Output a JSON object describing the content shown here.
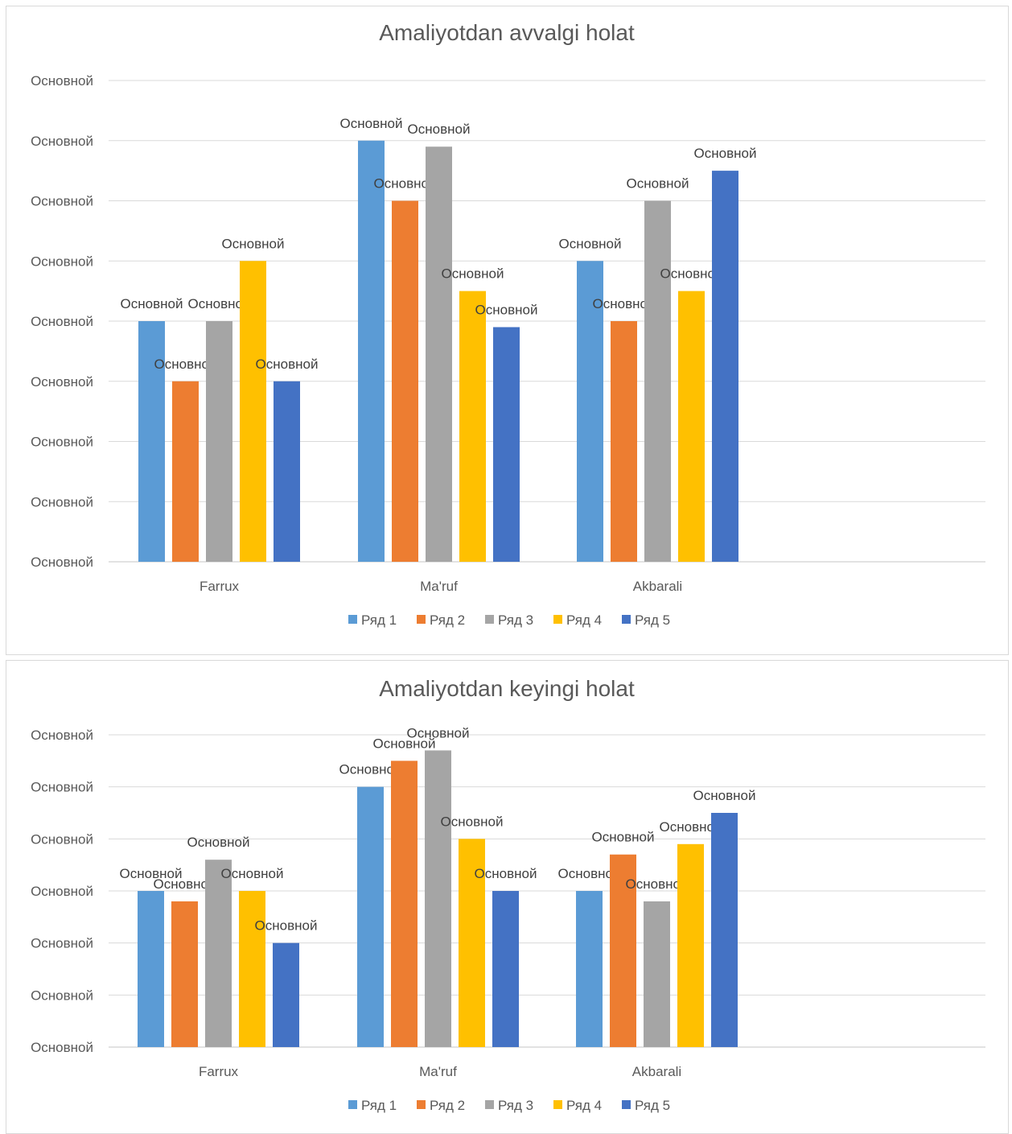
{
  "colors": {
    "series": [
      "#5b9bd5",
      "#ed7d31",
      "#a5a5a5",
      "#ffc000",
      "#4472c4"
    ]
  },
  "chart_data": [
    {
      "type": "bar",
      "title": "Amaliyotdan avvalgi holat",
      "categories": [
        "Farrux",
        "Ma'ruf",
        "Akbarali"
      ],
      "y_tick_labels": [
        "Основной",
        "Основной",
        "Основной",
        "Основной",
        "Основной",
        "Основной",
        "Основной",
        "Основной",
        "Основной"
      ],
      "ylim": [
        0,
        8
      ],
      "grid": true,
      "legend_position": "bottom",
      "series": [
        {
          "name": "Ряд 1",
          "values": [
            4,
            7,
            5
          ],
          "labels": [
            "Основной",
            "Основной",
            "Основной"
          ]
        },
        {
          "name": "Ряд 2",
          "values": [
            3,
            6,
            4
          ],
          "labels": [
            "Основной",
            "Основной",
            "Основной"
          ]
        },
        {
          "name": "Ряд 3",
          "values": [
            4,
            6.9,
            6
          ],
          "labels": [
            "Основной",
            "Основной",
            "Основной"
          ]
        },
        {
          "name": "Ряд 4",
          "values": [
            5,
            4.5,
            4.5
          ],
          "labels": [
            "Основной",
            "Основной",
            "Основной"
          ]
        },
        {
          "name": "Ряд 5",
          "values": [
            3,
            3.9,
            6.5
          ],
          "labels": [
            "Основной",
            "Основной",
            "Основной"
          ]
        }
      ]
    },
    {
      "type": "bar",
      "title": "Amaliyotdan keyingi holat",
      "categories": [
        "Farrux",
        "Ma'ruf",
        "Akbarali"
      ],
      "y_tick_labels": [
        "Основной",
        "Основной",
        "Основной",
        "Основной",
        "Основной",
        "Основной",
        "Основной"
      ],
      "ylim": [
        0,
        6
      ],
      "grid": true,
      "legend_position": "bottom",
      "series": [
        {
          "name": "Ряд 1",
          "values": [
            3,
            5,
            3
          ],
          "labels": [
            "Основной",
            "Основной",
            "Основной"
          ]
        },
        {
          "name": "Ряд 2",
          "values": [
            2.8,
            5.5,
            3.7
          ],
          "labels": [
            "Основной",
            "Основной",
            "Основной"
          ]
        },
        {
          "name": "Ряд 3",
          "values": [
            3.6,
            5.7,
            2.8
          ],
          "labels": [
            "Основной",
            "Основной",
            "Основной"
          ]
        },
        {
          "name": "Ряд 4",
          "values": [
            3,
            4,
            3.9
          ],
          "labels": [
            "Основной",
            "Основной",
            "Основной"
          ]
        },
        {
          "name": "Ряд 5",
          "values": [
            2,
            3,
            4.5
          ],
          "labels": [
            "Основной",
            "Основной",
            "Основной"
          ]
        }
      ]
    }
  ]
}
